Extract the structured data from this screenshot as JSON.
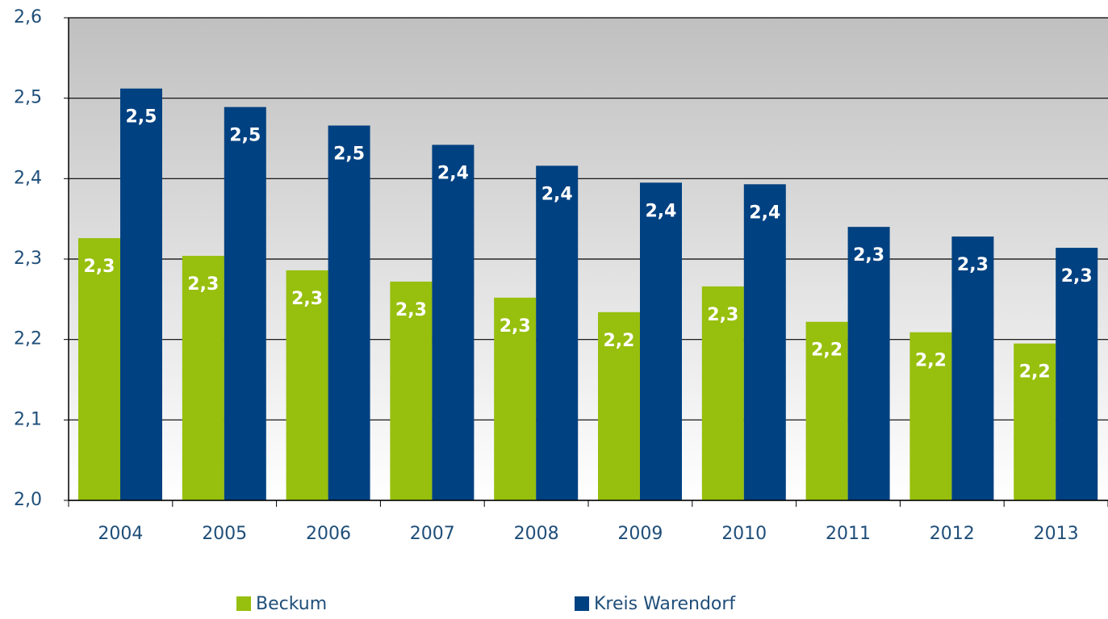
{
  "chart_data": {
    "type": "bar",
    "categories": [
      "2004",
      "2005",
      "2006",
      "2007",
      "2008",
      "2009",
      "2010",
      "2011",
      "2012",
      "2013"
    ],
    "series": [
      {
        "name": "Beckum",
        "color": "#97bf0d",
        "values": [
          2.326,
          2.304,
          2.286,
          2.272,
          2.252,
          2.234,
          2.266,
          2.222,
          2.209,
          2.195
        ],
        "value_labels": [
          "2,3",
          "2,3",
          "2,3",
          "2,3",
          "2,3",
          "2,2",
          "2,3",
          "2,2",
          "2,2",
          "2,2"
        ]
      },
      {
        "name": "Kreis Warendorf",
        "color": "#004181",
        "values": [
          2.512,
          2.489,
          2.466,
          2.442,
          2.416,
          2.395,
          2.393,
          2.34,
          2.328,
          2.314
        ],
        "value_labels": [
          "2,5",
          "2,5",
          "2,5",
          "2,4",
          "2,4",
          "2,4",
          "2,4",
          "2,3",
          "2,3",
          "2,3"
        ]
      }
    ],
    "ylim": [
      2.0,
      2.6
    ],
    "yticks": [
      {
        "value": 2.0,
        "label": "2,0"
      },
      {
        "value": 2.1,
        "label": "2,1"
      },
      {
        "value": 2.2,
        "label": "2,2"
      },
      {
        "value": 2.3,
        "label": "2,3"
      },
      {
        "value": 2.4,
        "label": "2,4"
      },
      {
        "value": 2.5,
        "label": "2,5"
      },
      {
        "value": 2.6,
        "label": "2,6"
      }
    ],
    "grid": true
  }
}
